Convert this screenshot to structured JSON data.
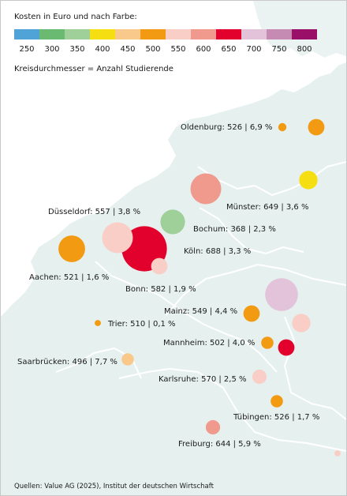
{
  "legend": {
    "title": "Kosten in Euro und nach Farbe:",
    "ticks": [
      "250",
      "300",
      "350",
      "400",
      "450",
      "500",
      "550",
      "600",
      "650",
      "700",
      "750",
      "800"
    ],
    "colors": [
      "#4fa3d6",
      "#6aba72",
      "#9fd09a",
      "#f5df12",
      "#f8c98a",
      "#f29a12",
      "#f9cec6",
      "#f09a8e",
      "#e2012d",
      "#e2c3da",
      "#c68bb2",
      "#9a0f68"
    ],
    "size_note": "Kreisdurchmesser = Anzahl Studierende"
  },
  "source": "Quellen: Value AG (2025), Institut der deutschen Wirtschaft",
  "chart_data": {
    "type": "bubble-map",
    "title": "Kosten in Euro und nach Farbe:",
    "size_encoding": "Kreisdurchmesser = Anzahl Studierende",
    "cities": [
      {
        "name": "Oldenburg",
        "label": "Oldenburg: 526 | 6,9 %",
        "cost": 526,
        "share": "6,9 %",
        "color": "#f29a12",
        "radius": 4
      },
      {
        "name": "Münster",
        "label": "Münster: 649 | 3,6 %",
        "cost": 649,
        "share": "3,6 %",
        "color": "#f09a8e",
        "radius": 15
      },
      {
        "name": "Düsseldorf",
        "label": "Düsseldorf: 557 | 3,8 %",
        "cost": 557,
        "share": "3,8 %",
        "color": "#f9cec6",
        "radius": 15
      },
      {
        "name": "Bochum",
        "label": "Bochum: 368 | 2,3 %",
        "cost": 368,
        "share": "2,3 %",
        "color": "#9fd09a",
        "radius": 12
      },
      {
        "name": "Köln",
        "label": "Köln: 688 | 3,3 %",
        "cost": 688,
        "share": "3,3 %",
        "color": "#e2012d",
        "radius": 22
      },
      {
        "name": "Aachen",
        "label": "Aachen: 521 | 1,6 %",
        "cost": 521,
        "share": "1,6 %",
        "color": "#f29a12",
        "radius": 13
      },
      {
        "name": "Bonn",
        "label": "Bonn: 582 | 1,9 %",
        "cost": 582,
        "share": "1,9 %",
        "color": "#f9cec6",
        "radius": 8
      },
      {
        "name": "Mainz",
        "label": "Mainz: 549 | 4,4 %",
        "cost": 549,
        "share": "4,4 %",
        "color": "#f29a12",
        "radius": 8
      },
      {
        "name": "Trier",
        "label": "Trier: 510 | 0,1 %",
        "cost": 510,
        "share": "0,1 %",
        "color": "#f29a12",
        "radius": 3
      },
      {
        "name": "Mannheim",
        "label": "Mannheim: 502 | 4,0 %",
        "cost": 502,
        "share": "4,0 %",
        "color": "#f29a12",
        "radius": 6
      },
      {
        "name": "Saarbrücken",
        "label": "Saarbrücken: 496 | 7,7 %",
        "cost": 496,
        "share": "7,7 %",
        "color": "#f8c98a",
        "radius": 6
      },
      {
        "name": "Karlsruhe",
        "label": "Karlsruhe: 570 | 2,5 %",
        "cost": 570,
        "share": "2,5 %",
        "color": "#f9cec6",
        "radius": 7
      },
      {
        "name": "Tübingen",
        "label": "Tübingen: 526 | 1,7 %",
        "cost": 526,
        "share": "1,7 %",
        "color": "#f29a12",
        "radius": 6
      },
      {
        "name": "Freiburg",
        "label": "Freiburg: 644 | 5,9 %",
        "cost": 644,
        "share": "5,9 %",
        "color": "#f09a8e",
        "radius": 7
      }
    ],
    "other_circles": [
      {
        "color": "#f29a12",
        "radius": 8
      },
      {
        "color": "#f5df12",
        "radius": 9
      },
      {
        "color": "#e2c3da",
        "radius": 16
      },
      {
        "color": "#f9cec6",
        "radius": 9
      },
      {
        "color": "#e2012d",
        "radius": 8
      },
      {
        "color": "#f9cec6",
        "radius": 3
      }
    ]
  }
}
